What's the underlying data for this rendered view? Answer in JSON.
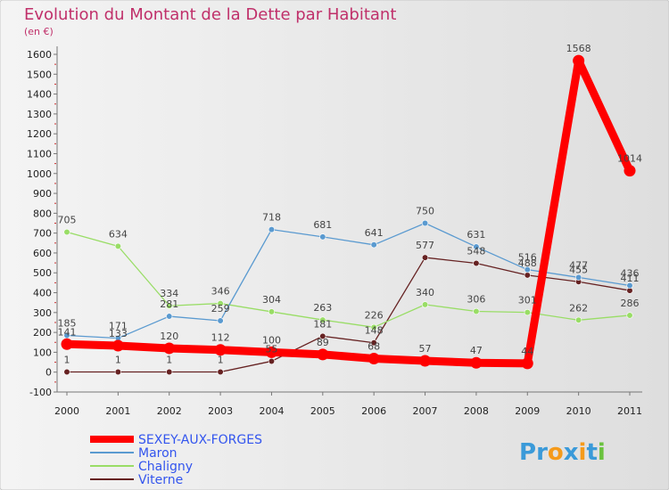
{
  "chart_data": {
    "type": "line",
    "title": "Evolution du Montant de la Dette par Habitant",
    "subtitle": "(en €)",
    "xlabel": "",
    "ylabel": "",
    "x": [
      "2000",
      "2001",
      "2002",
      "2003",
      "2004",
      "2005",
      "2006",
      "2007",
      "2008",
      "2009",
      "2010",
      "2011"
    ],
    "ylim": [
      -100,
      1600
    ],
    "yticks": [
      -100,
      0,
      100,
      200,
      300,
      400,
      500,
      600,
      700,
      800,
      900,
      1000,
      1100,
      1200,
      1300,
      1400,
      1500,
      1600
    ],
    "grid": false,
    "legend_position": "bottom-left",
    "series": [
      {
        "name": "SEXEY-AUX-FORGES",
        "color": "#ff0000",
        "values": [
          141,
          133,
          120,
          112,
          100,
          89,
          68,
          57,
          47,
          44,
          1568,
          1014
        ]
      },
      {
        "name": "Maron",
        "color": "#5a9ad0",
        "values": [
          185,
          171,
          281,
          259,
          718,
          681,
          641,
          750,
          631,
          516,
          477,
          436
        ]
      },
      {
        "name": "Chaligny",
        "color": "#99dd66",
        "values": [
          705,
          634,
          334,
          346,
          304,
          263,
          226,
          340,
          306,
          301,
          262,
          286
        ]
      },
      {
        "name": "Viterne",
        "color": "#662222",
        "values": [
          1,
          1,
          1,
          1,
          55,
          181,
          148,
          577,
          548,
          488,
          455,
          411
        ]
      }
    ]
  },
  "brand": {
    "letters": [
      "P",
      "r",
      "o",
      "x",
      "i",
      "t",
      "i"
    ],
    "colors": [
      "#3a9ad9",
      "#3a9ad9",
      "#f59a1a",
      "#3a9ad9",
      "#f59a1a",
      "#3a9ad9",
      "#6ac23e"
    ]
  }
}
